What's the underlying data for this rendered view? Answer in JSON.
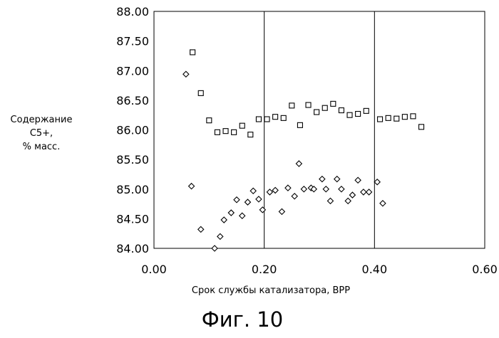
{
  "chart_data": {
    "type": "scatter",
    "title": "",
    "xlabel": "Срок службы катализатора, ВРР",
    "ylabel_lines": [
      "Содержание С5+,",
      "% масс."
    ],
    "xlim": [
      0,
      0.6
    ],
    "ylim": [
      84.0,
      88.0
    ],
    "x_ticks": [
      "0.00",
      "0.20",
      "0.40",
      "0.60"
    ],
    "y_ticks": [
      "88.00",
      "87.50",
      "87.00",
      "86.50",
      "86.00",
      "85.50",
      "85.00",
      "84.50",
      "84.00"
    ],
    "grid": "vertical",
    "series": [
      {
        "name": "squares",
        "marker": "square",
        "points": [
          [
            0.07,
            87.31
          ],
          [
            0.085,
            86.62
          ],
          [
            0.1,
            86.16
          ],
          [
            0.115,
            85.96
          ],
          [
            0.13,
            85.98
          ],
          [
            0.145,
            85.96
          ],
          [
            0.16,
            86.07
          ],
          [
            0.175,
            85.92
          ],
          [
            0.19,
            86.18
          ],
          [
            0.205,
            86.18
          ],
          [
            0.22,
            86.22
          ],
          [
            0.235,
            86.2
          ],
          [
            0.25,
            86.41
          ],
          [
            0.265,
            86.08
          ],
          [
            0.28,
            86.42
          ],
          [
            0.295,
            86.3
          ],
          [
            0.31,
            86.37
          ],
          [
            0.325,
            86.44
          ],
          [
            0.34,
            86.33
          ],
          [
            0.355,
            86.25
          ],
          [
            0.37,
            86.27
          ],
          [
            0.385,
            86.32
          ],
          [
            0.41,
            86.18
          ],
          [
            0.425,
            86.2
          ],
          [
            0.44,
            86.19
          ],
          [
            0.455,
            86.22
          ],
          [
            0.47,
            86.23
          ],
          [
            0.485,
            86.05
          ]
        ]
      },
      {
        "name": "diamonds",
        "marker": "diamond",
        "points": [
          [
            0.058,
            86.94
          ],
          [
            0.068,
            85.05
          ],
          [
            0.085,
            84.32
          ],
          [
            0.11,
            84.0
          ],
          [
            0.12,
            84.2
          ],
          [
            0.127,
            84.48
          ],
          [
            0.14,
            84.6
          ],
          [
            0.15,
            84.82
          ],
          [
            0.16,
            84.55
          ],
          [
            0.17,
            84.78
          ],
          [
            0.18,
            84.97
          ],
          [
            0.19,
            84.83
          ],
          [
            0.197,
            84.65
          ],
          [
            0.21,
            84.95
          ],
          [
            0.22,
            84.98
          ],
          [
            0.232,
            84.62
          ],
          [
            0.243,
            85.02
          ],
          [
            0.255,
            84.88
          ],
          [
            0.263,
            85.43
          ],
          [
            0.272,
            85.0
          ],
          [
            0.285,
            85.02
          ],
          [
            0.29,
            85.0
          ],
          [
            0.305,
            85.17
          ],
          [
            0.312,
            85.0
          ],
          [
            0.32,
            84.8
          ],
          [
            0.332,
            85.17
          ],
          [
            0.34,
            85.0
          ],
          [
            0.352,
            84.8
          ],
          [
            0.36,
            84.9
          ],
          [
            0.37,
            85.15
          ],
          [
            0.38,
            84.95
          ],
          [
            0.39,
            84.95
          ],
          [
            0.405,
            85.12
          ],
          [
            0.415,
            84.76
          ]
        ]
      }
    ]
  },
  "caption": "Фиг. 10"
}
